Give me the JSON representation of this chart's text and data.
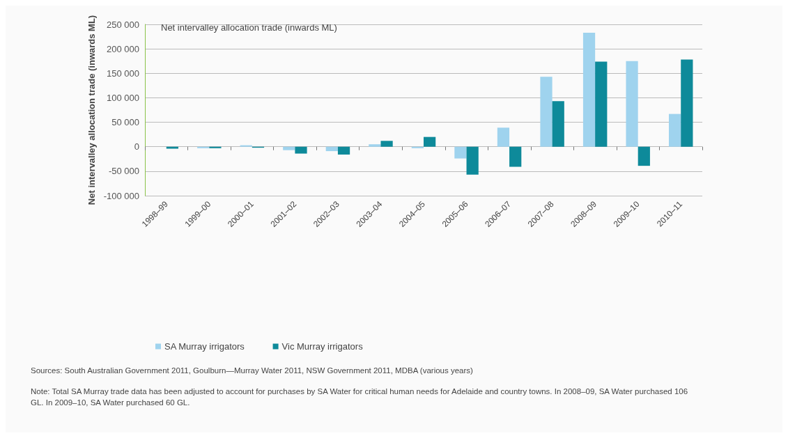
{
  "chart_data": {
    "type": "bar",
    "title": "Net intervalley allocation trade (inwards ML)",
    "ylabel": "Net intervalley allocation trade (inwards ML)",
    "categories": [
      "1998–99",
      "1999–00",
      "2000–01",
      "2001–02",
      "2002–03",
      "2003–04",
      "2004–05",
      "2005–06",
      "2006–07",
      "2007–08",
      "2008–09",
      "2009–10",
      "2010–11"
    ],
    "series": [
      {
        "name": "SA Murray irrigators",
        "color": "#9fd3ee",
        "values": [
          0,
          -3000,
          3000,
          -7000,
          -9000,
          5000,
          -3000,
          -24000,
          39000,
          143000,
          233000,
          175000,
          67000
        ]
      },
      {
        "name": "Vic Murray irrigators",
        "color": "#0e8a9a",
        "values": [
          -4000,
          -3000,
          -2000,
          -14000,
          -16000,
          12000,
          20000,
          -57000,
          -41000,
          93000,
          174000,
          -39000,
          178000
        ]
      }
    ],
    "ylim": [
      -100000,
      250000
    ],
    "yticks": [
      {
        "value": -100000,
        "label": "-100 000"
      },
      {
        "value": -50000,
        "label": "-50 000"
      },
      0,
      {
        "value": 50000,
        "label": "50 000"
      },
      {
        "value": 100000,
        "label": "100 000"
      },
      {
        "value": 150000,
        "label": "150 000"
      },
      {
        "value": 200000,
        "label": "200 000"
      },
      {
        "value": 250000,
        "label": "250 000"
      }
    ],
    "grid": "y",
    "legend": "bottom left",
    "annotations": [
      "Sources: South Australian Government 2011, Goulburn—Murray Water 2011, NSW Government 2011, MDBA (various years)",
      "Note: Total SA Murray trade data has been adjusted to account for purchases by SA Water for critical human needs for Adelaide and country towns. In 2008–09, SA Water purchased 106 GL. In 2009–10, SA Water purchased 60 GL."
    ]
  }
}
